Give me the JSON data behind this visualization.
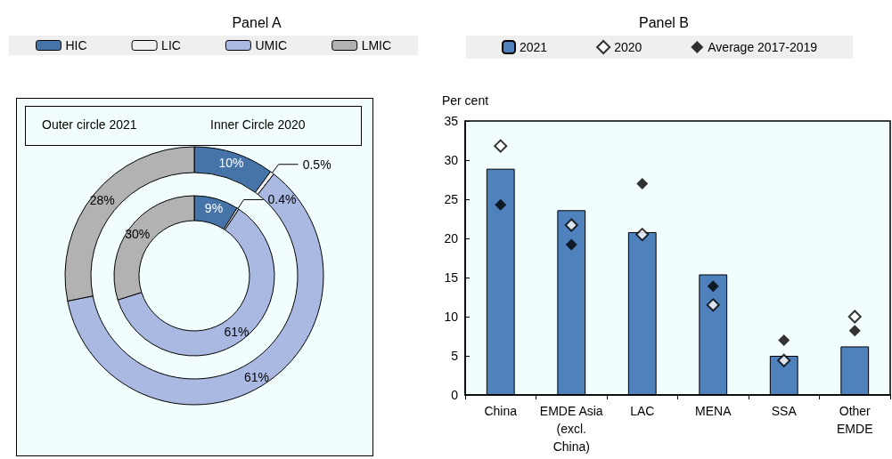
{
  "chart_data": [
    {
      "type": "donut",
      "title": "Panel A",
      "categories": [
        "HIC",
        "LIC",
        "UMIC",
        "LMIC"
      ],
      "colors": [
        "#4674a8",
        "#f0f0f0",
        "#a9b9e2",
        "#b2b2b2"
      ],
      "series": [
        {
          "values": [
            10,
            0.5,
            61,
            28
          ],
          "value_labels": [
            "10%",
            "0.5%",
            "61%",
            "28%"
          ]
        },
        {
          "values": [
            9,
            0.4,
            61,
            30
          ],
          "value_labels": [
            "9%",
            "0.4%",
            "61%",
            "30%"
          ]
        }
      ],
      "annotations": [
        "Outer circle 2021",
        "Inner Circle 2020"
      ],
      "legend": "top"
    },
    {
      "type": "bar",
      "title": "Panel B",
      "ylabel": "Per cent",
      "categories": [
        "China",
        "EMDE Asia\n(excl.\nChina)",
        "LAC",
        "MENA",
        "SSA",
        "Other\nEMDE"
      ],
      "series": [
        {
          "name": "2021",
          "color": "#4f81bd",
          "values": [
            28.9,
            23.6,
            20.8,
            15.4,
            5.0,
            6.2
          ]
        },
        {
          "name": "2020",
          "type": "scatter",
          "color": "#ffffff",
          "x": [
            "China",
            "EMDE Asia\n(excl.\nChina)",
            "LAC",
            "MENA",
            "SSA",
            "Other\nEMDE"
          ],
          "values": [
            31.8,
            21.7,
            20.5,
            11.5,
            4.4,
            10.0
          ]
        },
        {
          "name": "Average 2017-2019",
          "type": "scatter",
          "color": "#000000",
          "x": [
            "China",
            "EMDE Asia\n(excl.\nChina)",
            "LAC",
            "MENA",
            "SSA",
            "Other\nEMDE"
          ],
          "values": [
            24.3,
            19.2,
            27.0,
            13.9,
            7.0,
            8.2
          ]
        }
      ],
      "ylim": [
        0,
        35
      ],
      "yticks": [
        0,
        5,
        10,
        15,
        20,
        25,
        30,
        35
      ],
      "marker": "diamond",
      "legend": "top"
    }
  ]
}
